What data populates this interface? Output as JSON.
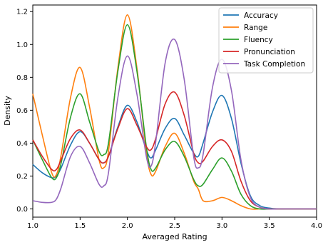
{
  "chart_data": {
    "type": "line",
    "title": "",
    "xlabel": "Averaged Rating",
    "ylabel": "Density",
    "xlim": [
      1.0,
      4.0
    ],
    "ylim": [
      -0.05,
      1.24
    ],
    "xticks": [
      "1.0",
      "1.5",
      "2.0",
      "2.5",
      "3.0",
      "3.5",
      "4.0"
    ],
    "yticks": [
      "0.0",
      "0.2",
      "0.4",
      "0.6",
      "0.8",
      "1.0",
      "1.2"
    ],
    "grid": false,
    "legend_position": "top-right",
    "x": [
      1.0,
      1.1,
      1.2,
      1.25,
      1.3,
      1.4,
      1.5,
      1.6,
      1.7,
      1.75,
      1.8,
      1.9,
      2.0,
      2.1,
      2.2,
      2.25,
      2.3,
      2.4,
      2.5,
      2.6,
      2.7,
      2.75,
      2.8,
      2.9,
      3.0,
      3.1,
      3.2,
      3.3,
      3.4,
      3.5,
      3.6,
      3.7,
      4.0
    ],
    "series": [
      {
        "name": "Accuracy",
        "color": "#1f77b4",
        "values": [
          0.27,
          0.22,
          0.19,
          0.2,
          0.25,
          0.39,
          0.47,
          0.4,
          0.3,
          0.28,
          0.32,
          0.5,
          0.63,
          0.53,
          0.36,
          0.31,
          0.36,
          0.49,
          0.55,
          0.45,
          0.34,
          0.32,
          0.4,
          0.59,
          0.69,
          0.55,
          0.28,
          0.08,
          0.02,
          0.005,
          0.0,
          0.0,
          0.0
        ]
      },
      {
        "name": "Range",
        "color": "#ff7f0e",
        "values": [
          0.7,
          0.45,
          0.22,
          0.21,
          0.33,
          0.68,
          0.86,
          0.62,
          0.3,
          0.25,
          0.35,
          0.86,
          1.18,
          0.86,
          0.35,
          0.21,
          0.23,
          0.38,
          0.46,
          0.34,
          0.17,
          0.12,
          0.05,
          0.05,
          0.07,
          0.05,
          0.02,
          0.0,
          0.0,
          0.0,
          0.0,
          0.0,
          0.0
        ]
      },
      {
        "name": "Fluency",
        "color": "#2ca02c",
        "values": [
          0.42,
          0.3,
          0.19,
          0.19,
          0.28,
          0.56,
          0.7,
          0.53,
          0.35,
          0.33,
          0.4,
          0.84,
          1.12,
          0.84,
          0.38,
          0.24,
          0.25,
          0.36,
          0.41,
          0.32,
          0.18,
          0.14,
          0.15,
          0.24,
          0.31,
          0.23,
          0.09,
          0.02,
          0.0,
          0.0,
          0.0,
          0.0,
          0.0
        ]
      },
      {
        "name": "Pronunciation",
        "color": "#d62728",
        "values": [
          0.42,
          0.32,
          0.24,
          0.24,
          0.3,
          0.43,
          0.48,
          0.4,
          0.3,
          0.28,
          0.32,
          0.49,
          0.61,
          0.51,
          0.38,
          0.36,
          0.43,
          0.64,
          0.71,
          0.57,
          0.34,
          0.28,
          0.29,
          0.38,
          0.42,
          0.35,
          0.17,
          0.05,
          0.01,
          0.0,
          0.0,
          0.0,
          0.0
        ]
      },
      {
        "name": "Task Completion",
        "color": "#9467bd",
        "values": [
          0.05,
          0.04,
          0.04,
          0.06,
          0.13,
          0.32,
          0.38,
          0.28,
          0.15,
          0.14,
          0.22,
          0.68,
          0.93,
          0.7,
          0.32,
          0.26,
          0.41,
          0.89,
          1.03,
          0.79,
          0.32,
          0.25,
          0.33,
          0.74,
          0.91,
          0.72,
          0.3,
          0.07,
          0.01,
          0.0,
          0.0,
          0.0,
          0.0
        ]
      }
    ]
  }
}
